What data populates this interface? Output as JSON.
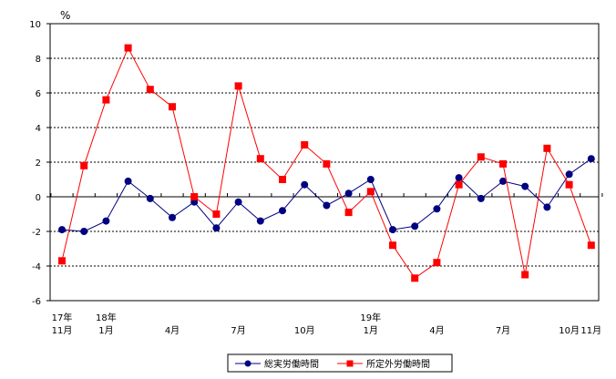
{
  "chart_data": {
    "type": "line",
    "ylabel": "%",
    "ylim": [
      -6,
      10
    ],
    "ytick_values": [
      -6,
      -4,
      -2,
      0,
      2,
      4,
      6,
      8,
      10
    ],
    "grid": "horizontal dashed",
    "legend_position": "bottom-center",
    "x_tick_labels": [
      {
        "index": 0,
        "top": "17年",
        "bottom": "11月"
      },
      {
        "index": 2,
        "top": "18年",
        "bottom": "1月"
      },
      {
        "index": 5,
        "top": "",
        "bottom": "4月"
      },
      {
        "index": 8,
        "top": "",
        "bottom": "7月"
      },
      {
        "index": 11,
        "top": "",
        "bottom": "10月"
      },
      {
        "index": 14,
        "top": "19年",
        "bottom": "1月"
      },
      {
        "index": 17,
        "top": "",
        "bottom": "4月"
      },
      {
        "index": 20,
        "top": "",
        "bottom": "7月"
      },
      {
        "index": 23,
        "top": "",
        "bottom": "10月"
      },
      {
        "index": 24,
        "top": "",
        "bottom": "11月"
      }
    ],
    "series": [
      {
        "name": "総実労働時間",
        "color": "#000080",
        "marker": "circle",
        "values": [
          -1.9,
          -2.0,
          -1.4,
          0.9,
          -0.1,
          -1.2,
          -0.3,
          -1.8,
          -0.3,
          -1.4,
          -0.8,
          0.7,
          -0.5,
          0.2,
          1.0,
          -1.9,
          -1.7,
          -0.7,
          1.1,
          -0.1,
          0.9,
          0.6,
          -0.6,
          1.3,
          2.2
        ]
      },
      {
        "name": "所定外労働時間",
        "color": "#ff0000",
        "marker": "square",
        "values": [
          -3.7,
          1.8,
          5.6,
          8.6,
          6.2,
          5.2,
          0.0,
          -1.0,
          6.4,
          2.2,
          1.0,
          3.0,
          1.9,
          -0.9,
          0.3,
          -2.8,
          -4.7,
          -3.8,
          0.7,
          2.3,
          1.9,
          -4.5,
          2.8,
          0.7,
          -2.8
        ]
      }
    ]
  }
}
